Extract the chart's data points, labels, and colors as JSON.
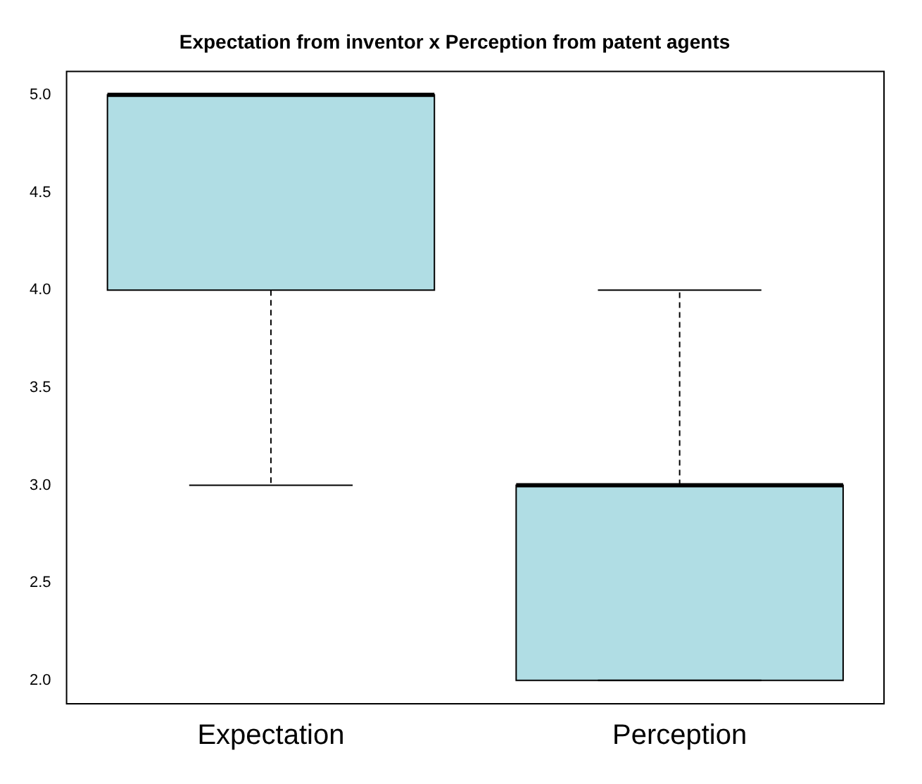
{
  "chart_data": {
    "type": "box",
    "title": "Expectation from inventor x Perception from patent agents",
    "categories": [
      "Expectation",
      "Perception"
    ],
    "boxes": [
      {
        "low": 3,
        "q1": 4,
        "median": 5,
        "q3": 5,
        "high": 5
      },
      {
        "low": 2,
        "q1": 2,
        "median": 3,
        "q3": 3,
        "high": 4
      }
    ],
    "color": "#b0dde4",
    "ylim": [
      1.88,
      5.12
    ],
    "yticks": [
      {
        "value": 2,
        "label": "2.0"
      },
      {
        "value": 2.5,
        "label": "2.5"
      },
      {
        "value": 3,
        "label": "3.0"
      },
      {
        "value": 3.5,
        "label": "3.5"
      },
      {
        "value": 4,
        "label": "4.0"
      },
      {
        "value": 4.5,
        "label": "4.5"
      },
      {
        "value": 5,
        "label": "5.0"
      }
    ]
  }
}
